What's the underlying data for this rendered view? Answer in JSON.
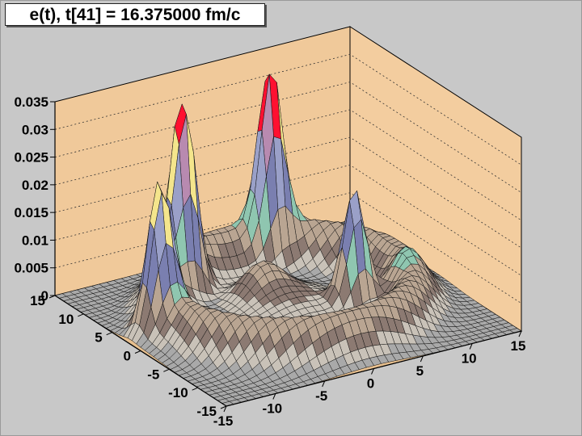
{
  "chart_data": {
    "type": "surface3d",
    "title": "e(t), t[41] = 16.375000 fm/c",
    "xlabel": "",
    "ylabel": "",
    "zlabel": "",
    "x_range": [
      -15,
      15
    ],
    "y_range": [
      -15,
      15
    ],
    "z_range": [
      0,
      0.035
    ],
    "x_ticks": [
      "-15",
      "-10",
      "-5",
      "0",
      "5",
      "10",
      "15"
    ],
    "y_ticks": [
      "-15",
      "-10",
      "-5",
      "0",
      "5",
      "10",
      "15"
    ],
    "z_ticks": [
      "0",
      "0.005",
      "0.01",
      "0.015",
      "0.02",
      "0.025",
      "0.03",
      "0.035"
    ],
    "grid": true,
    "description_of_surface": {
      "peaks": [
        {
          "x": -6,
          "y": 8,
          "z": 0.031
        },
        {
          "x": 4,
          "y": 10,
          "z": 0.029
        },
        {
          "x": -12,
          "y": 2,
          "z": 0.022
        },
        {
          "x": 5,
          "y": -3,
          "z": 0.021
        }
      ],
      "ring_rim_height": 0.008
    },
    "colors": {
      "background": "#c8c8c8",
      "walls": "#f0c99a",
      "floor": "#e7bf8e",
      "mesh": "#111111",
      "peak": "#ff1030"
    }
  }
}
